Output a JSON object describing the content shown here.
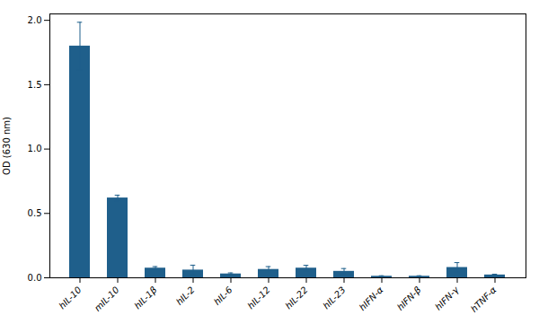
{
  "chart_data": {
    "type": "bar",
    "categories": [
      "hIL-10",
      "mIL-10",
      "hIL-1β",
      "hIL-2",
      "hIL-6",
      "hIL-12",
      "hIL-22",
      "hIL-23",
      "hIFN-α",
      "hIFN-β",
      "hIFN-γ",
      "hTNF-α"
    ],
    "values": [
      1.8,
      0.62,
      0.075,
      0.06,
      0.03,
      0.065,
      0.075,
      0.05,
      0.012,
      0.012,
      0.08,
      0.022
    ],
    "errors": [
      0.185,
      0.022,
      0.012,
      0.038,
      0.008,
      0.022,
      0.022,
      0.022,
      0.004,
      0.004,
      0.038,
      0.006
    ],
    "color": "#1f5f8b",
    "ylabel": "OD (630 nm)",
    "ylim": [
      0.0,
      2.05
    ],
    "yticks": [
      {
        "value": 0.0,
        "label": "0.0"
      },
      {
        "value": 0.5,
        "label": "0.5"
      },
      {
        "value": 1.0,
        "label": "1.0"
      },
      {
        "value": 1.5,
        "label": "1.5"
      },
      {
        "value": 2.0,
        "label": "2.0"
      }
    ],
    "grid": false
  }
}
